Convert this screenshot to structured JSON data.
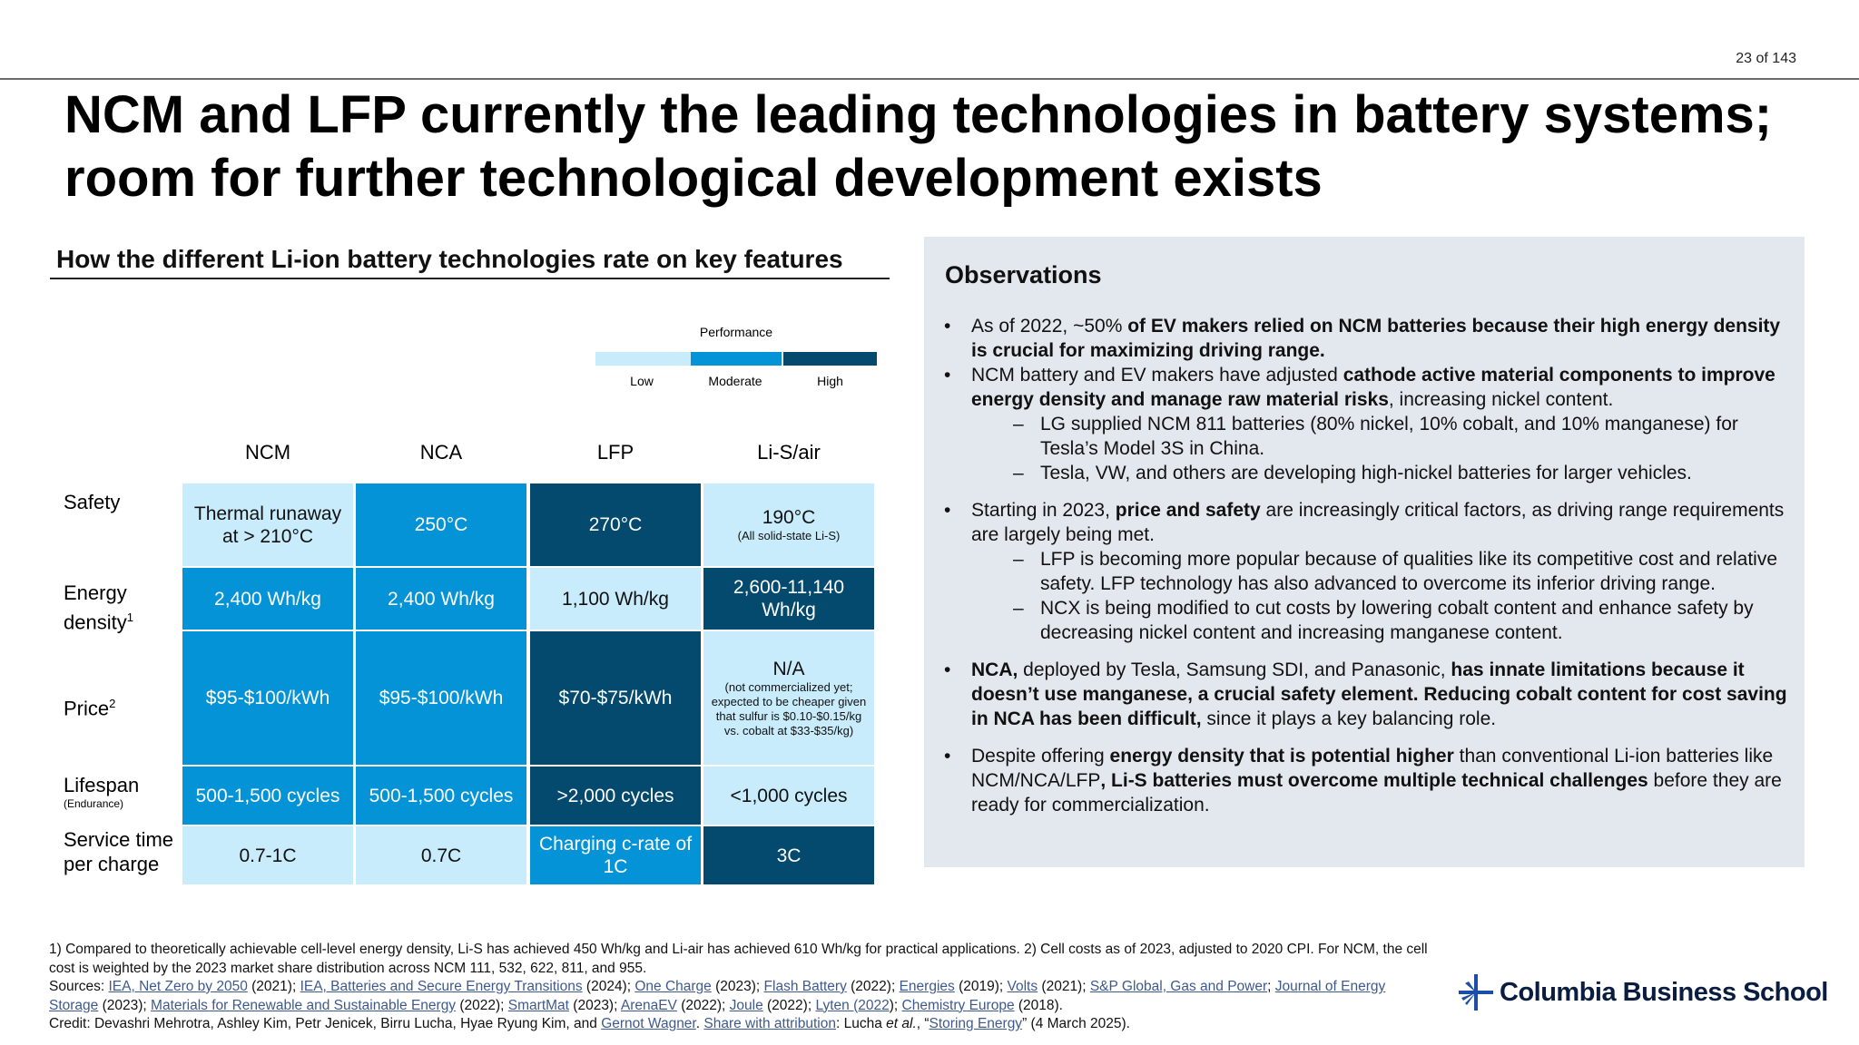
{
  "page_number": "23 of 143",
  "title": "NCM and LFP currently the leading technologies in battery systems; room for further technological development exists",
  "table_section": {
    "heading": "How the different Li-ion battery technologies rate on key features",
    "legend": {
      "title": "Performance",
      "low": "Low",
      "moderate": "Moderate",
      "high": "High",
      "colors": {
        "low": "#c8ecfc",
        "moderate": "#0393d6",
        "high": "#034a6e"
      }
    },
    "columns": [
      "NCM",
      "NCA",
      "LFP",
      "Li-S/air"
    ],
    "rows": [
      {
        "label": "Safety",
        "sup": "",
        "sublabel": "",
        "cells": [
          {
            "text": "Thermal runaway at > 210°C",
            "note": "",
            "level": "low"
          },
          {
            "text": "250°C",
            "note": "",
            "level": "moderate"
          },
          {
            "text": "270°C",
            "note": "",
            "level": "high"
          },
          {
            "text": "190°C",
            "note": "(All solid-state Li-S)",
            "level": "low"
          }
        ]
      },
      {
        "label": "Energy density",
        "sup": "1",
        "sublabel": "",
        "cells": [
          {
            "text": "2,400 Wh/kg",
            "note": "",
            "level": "moderate"
          },
          {
            "text": "2,400 Wh/kg",
            "note": "",
            "level": "moderate"
          },
          {
            "text": "1,100 Wh/kg",
            "note": "",
            "level": "low"
          },
          {
            "text": "2,600-11,140 Wh/kg",
            "note": "",
            "level": "high"
          }
        ]
      },
      {
        "label": "Price",
        "sup": "2",
        "sublabel": "",
        "cells": [
          {
            "text": "$95-$100/kWh",
            "note": "",
            "level": "moderate"
          },
          {
            "text": "$95-$100/kWh",
            "note": "",
            "level": "moderate"
          },
          {
            "text": "$70-$75/kWh",
            "note": "",
            "level": "high"
          },
          {
            "text": "N/A",
            "note": "(not commercialized yet; expected to be cheaper given that sulfur is $0.10-$0.15/kg vs. cobalt at $33-$35/kg)",
            "level": "low"
          }
        ]
      },
      {
        "label": "Lifespan",
        "sup": "",
        "sublabel": "(Endurance)",
        "cells": [
          {
            "text": "500-1,500 cycles",
            "note": "",
            "level": "moderate"
          },
          {
            "text": "500-1,500 cycles",
            "note": "",
            "level": "moderate"
          },
          {
            "text": ">2,000 cycles",
            "note": "",
            "level": "high"
          },
          {
            "text": "<1,000 cycles",
            "note": "",
            "level": "low"
          }
        ]
      },
      {
        "label": "Service time per charge",
        "sup": "",
        "sublabel": "",
        "cells": [
          {
            "text": "0.7-1C",
            "note": "",
            "level": "low"
          },
          {
            "text": "0.7C",
            "note": "",
            "level": "low"
          },
          {
            "text": "Charging c-rate of 1C",
            "note": "",
            "level": "moderate"
          },
          {
            "text": "3C",
            "note": "",
            "level": "high"
          }
        ]
      }
    ]
  },
  "observations": {
    "title": "Observations",
    "bullets": [
      {
        "level": 1,
        "parts": [
          {
            "t": "As of 2022, ~50% ",
            "b": false
          },
          {
            "t": "of EV makers relied on NCM batteries because their high energy density is crucial for maximizing driving range.",
            "b": true
          }
        ]
      },
      {
        "level": 1,
        "parts": [
          {
            "t": "NCM battery and EV makers have adjusted ",
            "b": false
          },
          {
            "t": "cathode active material components to improve energy density and manage raw material risks",
            "b": true
          },
          {
            "t": ", increasing nickel content.",
            "b": false
          }
        ]
      },
      {
        "level": 2,
        "parts": [
          {
            "t": "LG supplied NCM 811 batteries (80% nickel, 10% cobalt, and 10% manganese) for Tesla’s Model 3S in China.",
            "b": false
          }
        ]
      },
      {
        "level": 2,
        "parts": [
          {
            "t": "Tesla, VW, and others are developing high-nickel batteries for larger vehicles.",
            "b": false
          }
        ]
      },
      {
        "level": 0,
        "parts": []
      },
      {
        "level": 1,
        "parts": [
          {
            "t": "Starting in 2023, ",
            "b": false
          },
          {
            "t": "price and safety",
            "b": true
          },
          {
            "t": " are increasingly critical factors, as driving range requirements are largely being met.",
            "b": false
          }
        ]
      },
      {
        "level": 2,
        "parts": [
          {
            "t": "LFP is becoming more popular because of qualities like its competitive cost and relative safety. LFP technology has also advanced to overcome its inferior driving range.",
            "b": false
          }
        ]
      },
      {
        "level": 2,
        "parts": [
          {
            "t": "NCX is being modified to cut costs by lowering cobalt content and enhance safety by decreasing nickel content and increasing manganese content.",
            "b": false
          }
        ]
      },
      {
        "level": 0,
        "parts": []
      },
      {
        "level": 1,
        "parts": [
          {
            "t": "NCA,",
            "b": true
          },
          {
            "t": " deployed by Tesla, Samsung SDI, and Panasonic, ",
            "b": false
          },
          {
            "t": "has innate limitations because it doesn’t use manganese, a crucial safety element. Reducing cobalt content for cost saving in NCA has been difficult,",
            "b": true
          },
          {
            "t": " since it plays a key balancing role.",
            "b": false
          }
        ]
      },
      {
        "level": 0,
        "parts": []
      },
      {
        "level": 1,
        "parts": [
          {
            "t": "Despite offering ",
            "b": false
          },
          {
            "t": "energy density that is potential higher",
            "b": true
          },
          {
            "t": " than conventional Li-ion batteries like NCM/NCA/LFP",
            "b": false
          },
          {
            "t": ", Li-S batteries must overcome multiple technical challenges",
            "b": true
          },
          {
            "t": " before they are ready for commercialization.",
            "b": false
          }
        ]
      }
    ]
  },
  "footnotes": {
    "notes": "1) Compared to theoretically achievable cell-level energy density, Li-S has achieved 450 Wh/kg and Li-air has achieved 610 Wh/kg for practical applications. 2) Cell costs as of 2023, adjusted to 2020 CPI. For NCM, the cell cost is weighted by the 2023 market share distribution across NCM 111, 532, 622, 811, and 955.",
    "sources_label": "Sources: ",
    "sources": [
      {
        "link": "IEA, Net Zero by 2050",
        "after": " (2021); "
      },
      {
        "link": "IEA, Batteries and Secure Energy Transitions",
        "after": " (2024); "
      },
      {
        "link": "One Charge",
        "after": " (2023); "
      },
      {
        "link": "Flash Battery",
        "after": " (2022); "
      },
      {
        "link": "Energies",
        "after": " (2019); "
      },
      {
        "link": "Volts",
        "after": " (2021); "
      },
      {
        "link": "S&P Global, Gas and Power",
        "after": "; "
      },
      {
        "link": "Journal of Energy Storage",
        "after": " (2023); "
      },
      {
        "link": "Materials for Renewable and Sustainable Energy",
        "after": " (2022); "
      },
      {
        "link": "SmartMat",
        "after": " (2023); "
      },
      {
        "link": "ArenaEV",
        "after": " (2022); "
      },
      {
        "link": "Joule",
        "after": " (2022); "
      },
      {
        "link": "Lyten (2022",
        "after": "); "
      },
      {
        "link": "Chemistry Europe",
        "after": " (2018)."
      }
    ],
    "credit_prefix": "Credit: Devashri Mehrotra, Ashley Kim, Petr Jenicek, Birru Lucha, Hyae Ryung Kim, and ",
    "credit_link1": "Gernot Wagner",
    "credit_mid1": ". ",
    "credit_link2": "Share with attribution",
    "credit_mid2": ": Lucha ",
    "credit_etal": "et al.",
    "credit_mid3": ", “",
    "credit_link3": "Storing Energy",
    "credit_end": "” (4 March 2025)."
  },
  "logo": {
    "text": "Columbia Business School",
    "icon": "columbia-crown-icon"
  }
}
